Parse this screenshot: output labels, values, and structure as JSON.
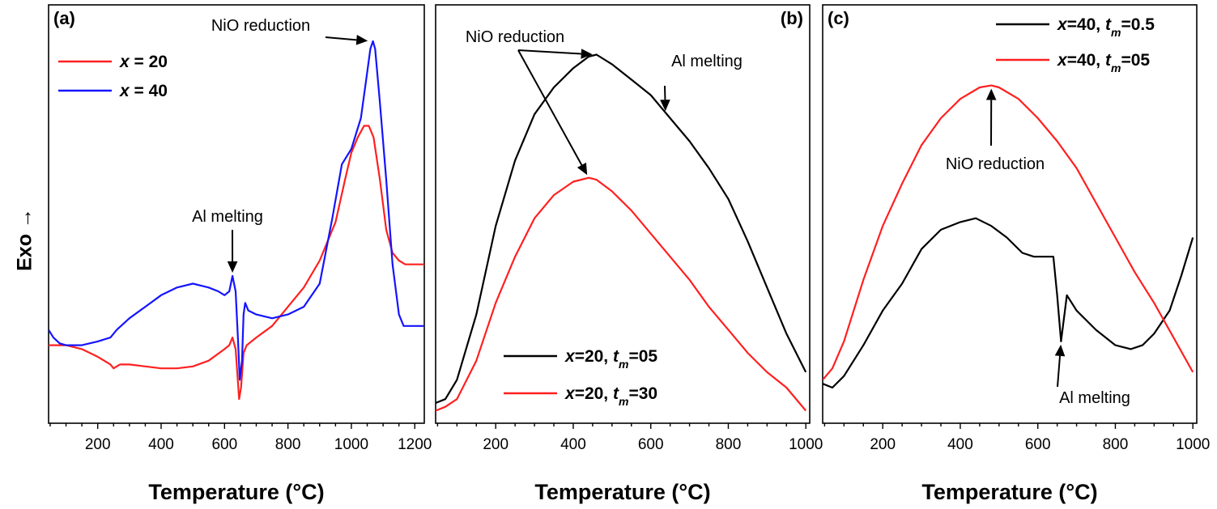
{
  "ylabel": "Exo →",
  "colors": {
    "red": "#ff2020",
    "blue": "#1414ff",
    "black": "#000000"
  },
  "chart_data": [
    {
      "panel": "(a)",
      "type": "line",
      "xlabel": "Temperature (°C)",
      "xlim": [
        45,
        1230
      ],
      "ylim": [
        0,
        1
      ],
      "xticks": [
        200,
        400,
        600,
        800,
        1000,
        1200
      ],
      "series": [
        {
          "name": "x = 20",
          "legend": {
            "pre": "x",
            "post": " = 20"
          },
          "color": "red",
          "points": [
            [
              45,
              0.17
            ],
            [
              100,
              0.17
            ],
            [
              150,
              0.16
            ],
            [
              200,
              0.14
            ],
            [
              240,
              0.12
            ],
            [
              250,
              0.11
            ],
            [
              270,
              0.12
            ],
            [
              300,
              0.12
            ],
            [
              350,
              0.115
            ],
            [
              400,
              0.11
            ],
            [
              450,
              0.11
            ],
            [
              500,
              0.115
            ],
            [
              550,
              0.13
            ],
            [
              600,
              0.16
            ],
            [
              615,
              0.17
            ],
            [
              625,
              0.19
            ],
            [
              635,
              0.16
            ],
            [
              640,
              0.1
            ],
            [
              646,
              0.03
            ],
            [
              652,
              0.06
            ],
            [
              660,
              0.15
            ],
            [
              670,
              0.17
            ],
            [
              700,
              0.19
            ],
            [
              750,
              0.22
            ],
            [
              800,
              0.27
            ],
            [
              850,
              0.32
            ],
            [
              900,
              0.39
            ],
            [
              950,
              0.49
            ],
            [
              980,
              0.6
            ],
            [
              1000,
              0.67
            ],
            [
              1020,
              0.71
            ],
            [
              1040,
              0.74
            ],
            [
              1055,
              0.74
            ],
            [
              1070,
              0.71
            ],
            [
              1090,
              0.6
            ],
            [
              1110,
              0.47
            ],
            [
              1130,
              0.41
            ],
            [
              1150,
              0.39
            ],
            [
              1170,
              0.38
            ],
            [
              1200,
              0.38
            ],
            [
              1230,
              0.38
            ]
          ]
        },
        {
          "name": "x = 40",
          "legend": {
            "pre": "x",
            "post": " = 40"
          },
          "color": "blue",
          "points": [
            [
              45,
              0.21
            ],
            [
              60,
              0.19
            ],
            [
              80,
              0.175
            ],
            [
              100,
              0.17
            ],
            [
              150,
              0.17
            ],
            [
              200,
              0.18
            ],
            [
              240,
              0.19
            ],
            [
              260,
              0.21
            ],
            [
              300,
              0.24
            ],
            [
              350,
              0.27
            ],
            [
              400,
              0.3
            ],
            [
              450,
              0.32
            ],
            [
              500,
              0.33
            ],
            [
              550,
              0.32
            ],
            [
              580,
              0.31
            ],
            [
              600,
              0.3
            ],
            [
              615,
              0.31
            ],
            [
              625,
              0.35
            ],
            [
              635,
              0.31
            ],
            [
              642,
              0.19
            ],
            [
              648,
              0.08
            ],
            [
              655,
              0.13
            ],
            [
              660,
              0.25
            ],
            [
              665,
              0.28
            ],
            [
              675,
              0.26
            ],
            [
              700,
              0.25
            ],
            [
              750,
              0.24
            ],
            [
              800,
              0.25
            ],
            [
              850,
              0.27
            ],
            [
              900,
              0.33
            ],
            [
              940,
              0.5
            ],
            [
              970,
              0.64
            ],
            [
              1000,
              0.68
            ],
            [
              1030,
              0.76
            ],
            [
              1045,
              0.85
            ],
            [
              1060,
              0.94
            ],
            [
              1068,
              0.96
            ],
            [
              1075,
              0.94
            ],
            [
              1090,
              0.8
            ],
            [
              1110,
              0.6
            ],
            [
              1130,
              0.38
            ],
            [
              1150,
              0.25
            ],
            [
              1165,
              0.22
            ],
            [
              1180,
              0.22
            ],
            [
              1200,
              0.22
            ],
            [
              1230,
              0.22
            ]
          ]
        }
      ],
      "annotations": [
        {
          "text": "NiO reduction"
        },
        {
          "text": "Al melting"
        }
      ]
    },
    {
      "panel": "(b)",
      "type": "line",
      "xlabel": "Temperature (°C)",
      "xlim": [
        45,
        1010
      ],
      "ylim": [
        0,
        1
      ],
      "xticks": [
        200,
        400,
        600,
        800,
        1000
      ],
      "series": [
        {
          "name": "x=20, tm=05",
          "legend": {
            "pre": "x",
            "mid": "=20,  ",
            "t": "t",
            "sub": "m",
            "post": "=05"
          },
          "color": "black",
          "points": [
            [
              45,
              0.02
            ],
            [
              70,
              0.03
            ],
            [
              100,
              0.08
            ],
            [
              150,
              0.25
            ],
            [
              200,
              0.48
            ],
            [
              250,
              0.65
            ],
            [
              300,
              0.77
            ],
            [
              350,
              0.84
            ],
            [
              400,
              0.89
            ],
            [
              440,
              0.92
            ],
            [
              460,
              0.925
            ],
            [
              500,
              0.9
            ],
            [
              550,
              0.86
            ],
            [
              600,
              0.82
            ],
            [
              650,
              0.76
            ],
            [
              700,
              0.7
            ],
            [
              750,
              0.63
            ],
            [
              800,
              0.55
            ],
            [
              850,
              0.44
            ],
            [
              900,
              0.32
            ],
            [
              950,
              0.2
            ],
            [
              1000,
              0.1
            ]
          ]
        },
        {
          "name": "x=20, tm=30",
          "legend": {
            "pre": "x",
            "mid": "=20,  ",
            "t": "t",
            "sub": "m",
            "post": "=30"
          },
          "color": "red",
          "points": [
            [
              45,
              0.0
            ],
            [
              70,
              0.01
            ],
            [
              100,
              0.03
            ],
            [
              150,
              0.13
            ],
            [
              200,
              0.28
            ],
            [
              250,
              0.4
            ],
            [
              300,
              0.5
            ],
            [
              350,
              0.56
            ],
            [
              400,
              0.595
            ],
            [
              440,
              0.605
            ],
            [
              460,
              0.6
            ],
            [
              500,
              0.57
            ],
            [
              550,
              0.52
            ],
            [
              600,
              0.46
            ],
            [
              650,
              0.4
            ],
            [
              700,
              0.34
            ],
            [
              750,
              0.27
            ],
            [
              800,
              0.21
            ],
            [
              850,
              0.15
            ],
            [
              900,
              0.1
            ],
            [
              950,
              0.06
            ],
            [
              1000,
              0.0
            ]
          ]
        }
      ],
      "annotations": [
        {
          "text": "NiO reduction"
        },
        {
          "text": "Al melting"
        }
      ]
    },
    {
      "panel": "(c)",
      "type": "line",
      "xlabel": "Temperature (°C)",
      "xlim": [
        45,
        1010
      ],
      "ylim": [
        0,
        1
      ],
      "xticks": [
        200,
        400,
        600,
        800,
        1000
      ],
      "series": [
        {
          "name": "x=40, tm=0.5",
          "legend": {
            "pre": "x",
            "mid": "=40,  ",
            "t": "t",
            "sub": "m",
            "post": "=0.5"
          },
          "color": "black",
          "points": [
            [
              45,
              0.07
            ],
            [
              70,
              0.06
            ],
            [
              100,
              0.09
            ],
            [
              150,
              0.17
            ],
            [
              200,
              0.26
            ],
            [
              250,
              0.33
            ],
            [
              300,
              0.42
            ],
            [
              350,
              0.47
            ],
            [
              400,
              0.49
            ],
            [
              440,
              0.5
            ],
            [
              480,
              0.48
            ],
            [
              520,
              0.45
            ],
            [
              560,
              0.41
            ],
            [
              590,
              0.4
            ],
            [
              620,
              0.4
            ],
            [
              640,
              0.4
            ],
            [
              650,
              0.3
            ],
            [
              660,
              0.18
            ],
            [
              665,
              0.22
            ],
            [
              675,
              0.3
            ],
            [
              700,
              0.26
            ],
            [
              750,
              0.21
            ],
            [
              800,
              0.17
            ],
            [
              840,
              0.16
            ],
            [
              870,
              0.17
            ],
            [
              900,
              0.2
            ],
            [
              940,
              0.26
            ],
            [
              970,
              0.35
            ],
            [
              1000,
              0.45
            ]
          ]
        },
        {
          "name": "x=40, tm=05",
          "legend": {
            "pre": "x",
            "mid": "=40,  ",
            "t": "t",
            "sub": "m",
            "post": "=05"
          },
          "color": "red",
          "points": [
            [
              45,
              0.08
            ],
            [
              70,
              0.11
            ],
            [
              100,
              0.18
            ],
            [
              150,
              0.34
            ],
            [
              200,
              0.48
            ],
            [
              250,
              0.59
            ],
            [
              300,
              0.69
            ],
            [
              350,
              0.76
            ],
            [
              400,
              0.81
            ],
            [
              450,
              0.84
            ],
            [
              480,
              0.845
            ],
            [
              500,
              0.84
            ],
            [
              550,
              0.81
            ],
            [
              600,
              0.76
            ],
            [
              650,
              0.7
            ],
            [
              700,
              0.63
            ],
            [
              750,
              0.54
            ],
            [
              800,
              0.45
            ],
            [
              850,
              0.36
            ],
            [
              900,
              0.28
            ],
            [
              950,
              0.19
            ],
            [
              1000,
              0.1
            ]
          ]
        }
      ],
      "annotations": [
        {
          "text": "NiO reduction"
        },
        {
          "text": "Al melting"
        }
      ]
    }
  ]
}
